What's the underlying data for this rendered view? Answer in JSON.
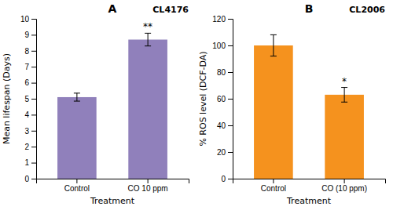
{
  "chart_data": [
    {
      "type": "bar",
      "title": "A",
      "annotation": "CL4176",
      "categories": [
        "Control",
        "CO 10 ppm"
      ],
      "values": [
        5.1,
        8.7
      ],
      "errors": [
        0.25,
        0.4
      ],
      "significance": [
        null,
        "**"
      ],
      "color": "#9080bb",
      "xlabel": "Treatment",
      "ylabel": "Mean lifespan (Days)",
      "ylim": [
        0,
        10
      ],
      "yticks": [
        0,
        1,
        2,
        3,
        4,
        5,
        6,
        7,
        8,
        9,
        10
      ],
      "grid": false
    },
    {
      "type": "bar",
      "title": "B",
      "annotation": "CL2006",
      "categories": [
        "Control",
        "CO (10 ppm)"
      ],
      "values": [
        100,
        63
      ],
      "errors": [
        8.0,
        5.5
      ],
      "significance": [
        null,
        "*"
      ],
      "color": "#f5921e",
      "xlabel": "Treatment",
      "ylabel": "% ROS level (DCF-DA)",
      "ylim": [
        0,
        120
      ],
      "yticks": [
        0,
        20,
        40,
        60,
        80,
        100,
        120
      ],
      "grid": false
    }
  ]
}
